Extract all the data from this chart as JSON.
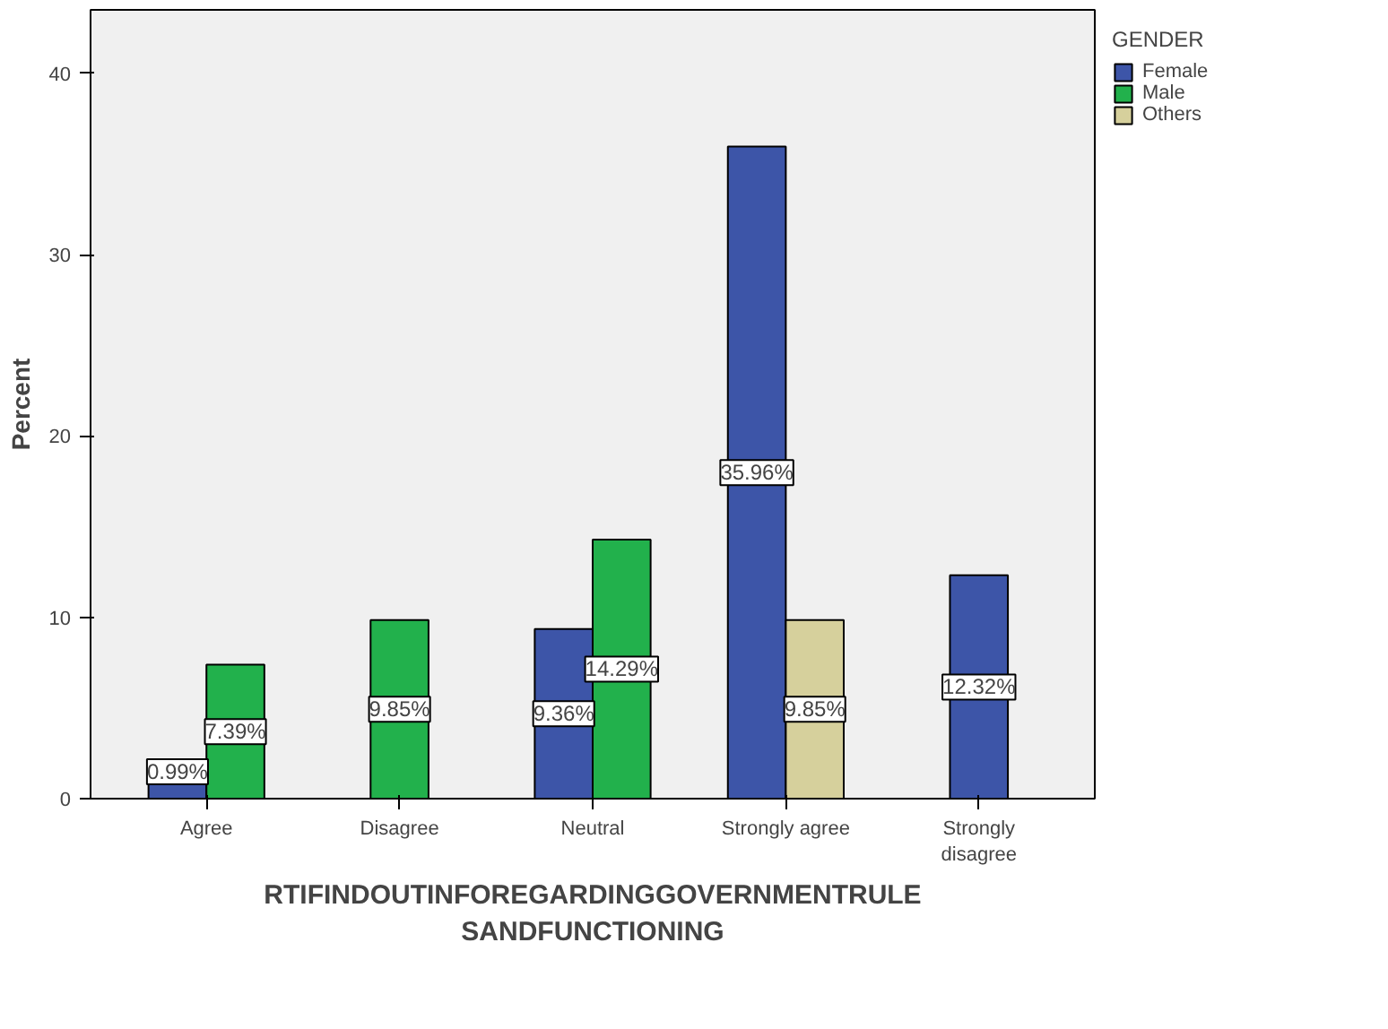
{
  "chart_data": {
    "type": "bar",
    "xlabel": "RTIFINDOUTINFOREGARDINGGOVERNMENTRULESANDFUNCTIONING",
    "ylabel": "Percent",
    "legend_title": "GENDER",
    "categories": [
      "Agree",
      "Disagree",
      "Neutral",
      "Strongly agree",
      "Strongly disagree"
    ],
    "series": [
      {
        "name": "Female",
        "color": "#3d55a8",
        "values": [
          0.99,
          null,
          9.36,
          35.96,
          12.32
        ],
        "value_labels": [
          "0.99%",
          null,
          "9.36%",
          "35.96%",
          "12.32%"
        ]
      },
      {
        "name": "Male",
        "color": "#22b14c",
        "values": [
          7.39,
          9.85,
          14.29,
          null,
          null
        ],
        "value_labels": [
          "7.39%",
          "9.85%",
          "14.29%",
          null,
          null
        ]
      },
      {
        "name": "Others",
        "color": "#d6d09c",
        "values": [
          null,
          null,
          null,
          9.85,
          null
        ],
        "value_labels": [
          null,
          null,
          null,
          "9.85%",
          null
        ]
      }
    ],
    "ylim": [
      0,
      43.5
    ],
    "yticks": [
      0,
      10,
      20,
      30,
      40
    ],
    "grid": false,
    "legend": "top right"
  }
}
